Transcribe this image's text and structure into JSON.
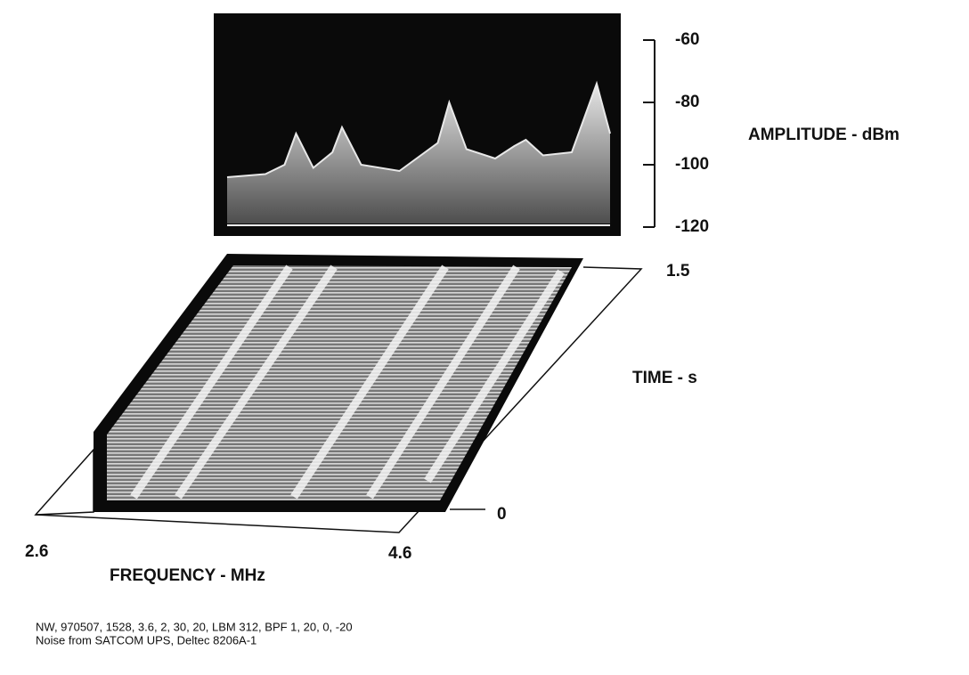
{
  "chart_data": {
    "type": "line",
    "ylabel": "AMPLITUDE - dBm",
    "xlabel": "FREQUENCY - MHz",
    "zlabel": "TIME - s",
    "x": [
      2.6,
      2.8,
      2.9,
      2.96,
      3.05,
      3.15,
      3.2,
      3.3,
      3.5,
      3.7,
      3.76,
      3.85,
      4.0,
      4.1,
      4.16,
      4.25,
      4.4,
      4.53,
      4.6
    ],
    "values": [
      -104,
      -103,
      -100,
      -90,
      -101,
      -96,
      -88,
      -100,
      -102,
      -93,
      -80,
      -95,
      -98,
      -94,
      -92,
      -97,
      -96,
      -74,
      -90
    ],
    "color": "#e8e8e8",
    "xlim": [
      2.6,
      4.6
    ],
    "xticks": [
      2.6,
      4.6
    ],
    "ylim": [
      -120,
      -60
    ],
    "yticks": [
      -60,
      -80,
      -100,
      -120
    ],
    "zlim": [
      0,
      1.5
    ],
    "zticks": [
      0,
      1.5
    ],
    "notes": [
      "NW, 970507, 1528, 3.6, 2, 30, 20, LBM 312, BPF 1, 20, 0, -20",
      "Noise from SATCOM UPS, Deltec 8206A-1"
    ]
  }
}
